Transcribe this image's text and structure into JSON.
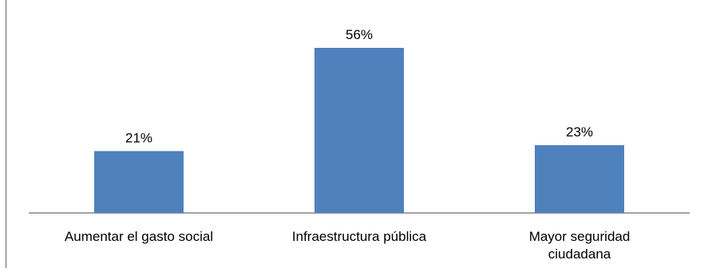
{
  "chart_data": {
    "type": "bar",
    "categories": [
      [
        "Aumentar el gasto social"
      ],
      [
        "Infraestructura pública"
      ],
      [
        "Mayor seguridad",
        "ciudadana"
      ]
    ],
    "values": [
      21,
      56,
      23
    ],
    "data_labels": [
      "21%",
      "56%",
      "23%"
    ],
    "title": "",
    "xlabel": "",
    "ylabel": "",
    "ylim": [
      0,
      60
    ],
    "grid": false,
    "legend": "none",
    "colors": {
      "bar": "#4F81BD",
      "axis": "#868686",
      "text": "#000000"
    }
  }
}
